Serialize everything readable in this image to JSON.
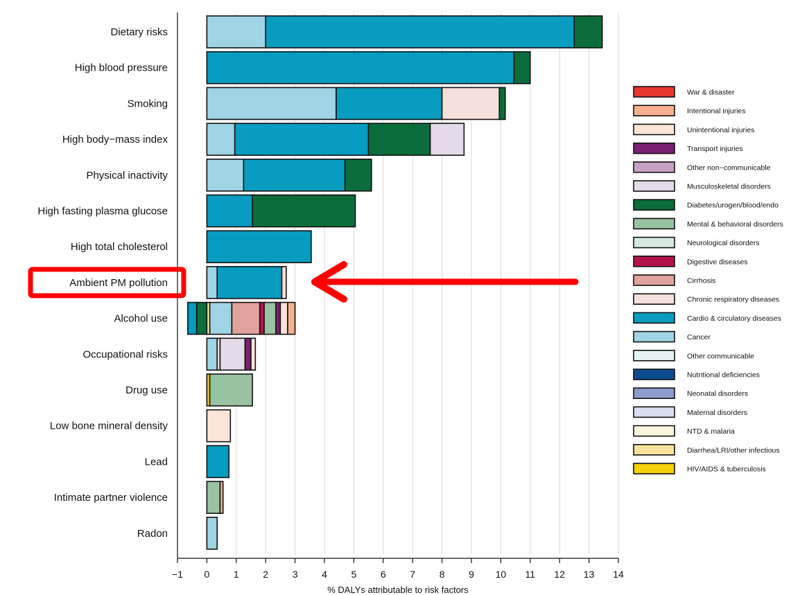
{
  "chart_data": {
    "type": "bar",
    "orientation": "horizontal",
    "stacked": true,
    "title": "",
    "xlabel": "% DALYs attributable to risk factors",
    "ylabel": "",
    "xlim": [
      -1,
      14
    ],
    "xticks": [
      -1,
      0,
      1,
      2,
      3,
      4,
      5,
      6,
      7,
      8,
      9,
      10,
      11,
      12,
      13,
      14
    ],
    "grid": "vertical",
    "legend_position": "right",
    "categories": [
      "Dietary risks",
      "High blood pressure",
      "Smoking",
      "High body−mass index",
      "Physical inactivity",
      "High fasting plasma glucose",
      "High total cholesterol",
      "Ambient PM pollution",
      "Alcohol use",
      "Occupational risks",
      "Drug use",
      "Low bone mineral density",
      "Lead",
      "Intimate partner violence",
      "Radon"
    ],
    "legend": [
      {
        "name": "War & disaster",
        "color": "#e8372e"
      },
      {
        "name": "Intentional injuries",
        "color": "#f7b08f"
      },
      {
        "name": "Unintentional injuries",
        "color": "#fde4d8"
      },
      {
        "name": "Transport injuries",
        "color": "#7b1f73"
      },
      {
        "name": "Other non−communicable",
        "color": "#c7a1c6"
      },
      {
        "name": "Musculoskeletal disorders",
        "color": "#e5dae9"
      },
      {
        "name": "Diabetes/urogen/blood/endo",
        "color": "#0b6d3b"
      },
      {
        "name": "Mental & behavioral disorders",
        "color": "#99c2a2"
      },
      {
        "name": "Neurological disorders",
        "color": "#d6e8dd"
      },
      {
        "name": "Digestive diseases",
        "color": "#b3134b"
      },
      {
        "name": "Cirrhosis",
        "color": "#e0a29c"
      },
      {
        "name": "Chronic respiratory diseases",
        "color": "#f5e0da"
      },
      {
        "name": "Cardio & circulatory diseases",
        "color": "#079cc0"
      },
      {
        "name": "Cancer",
        "color": "#9fd4e4"
      },
      {
        "name": "Other communicable",
        "color": "#e4f2f4"
      },
      {
        "name": "Nutritional deficiencies",
        "color": "#0b4b8c"
      },
      {
        "name": "Neonatal disorders",
        "color": "#8c9dcc"
      },
      {
        "name": "Maternal disorders",
        "color": "#d8ddef"
      },
      {
        "name": "NTD & malaria",
        "color": "#fdf6dd"
      },
      {
        "name": "Diarrhea/LRI/other infectious",
        "color": "#fbe29c"
      },
      {
        "name": "HIV/AIDS & tuberculosis",
        "color": "#f5d10c"
      }
    ],
    "bars": [
      {
        "category": "Dietary risks",
        "segments": [
          {
            "cause": "Cancer",
            "value": 2.0
          },
          {
            "cause": "Cardio & circulatory diseases",
            "value": 10.5
          },
          {
            "cause": "Diabetes/urogen/blood/endo",
            "value": 0.95
          }
        ]
      },
      {
        "category": "High blood pressure",
        "segments": [
          {
            "cause": "Cardio & circulatory diseases",
            "value": 10.45
          },
          {
            "cause": "Diabetes/urogen/blood/endo",
            "value": 0.55
          }
        ]
      },
      {
        "category": "Smoking",
        "segments": [
          {
            "cause": "Cancer",
            "value": 4.4
          },
          {
            "cause": "Cardio & circulatory diseases",
            "value": 3.6
          },
          {
            "cause": "Chronic respiratory diseases",
            "value": 1.95
          },
          {
            "cause": "Diabetes/urogen/blood/endo",
            "value": 0.2
          }
        ]
      },
      {
        "category": "High body−mass index",
        "segments": [
          {
            "cause": "Cancer",
            "value": 0.95
          },
          {
            "cause": "Cardio & circulatory diseases",
            "value": 4.55
          },
          {
            "cause": "Diabetes/urogen/blood/endo",
            "value": 2.1
          },
          {
            "cause": "Musculoskeletal disorders",
            "value": 1.15
          }
        ]
      },
      {
        "category": "Physical inactivity",
        "segments": [
          {
            "cause": "Cancer",
            "value": 1.25
          },
          {
            "cause": "Cardio & circulatory diseases",
            "value": 3.45
          },
          {
            "cause": "Diabetes/urogen/blood/endo",
            "value": 0.9
          }
        ]
      },
      {
        "category": "High fasting plasma glucose",
        "segments": [
          {
            "cause": "Cardio & circulatory diseases",
            "value": 1.55
          },
          {
            "cause": "Diabetes/urogen/blood/endo",
            "value": 3.5
          }
        ]
      },
      {
        "category": "High total cholesterol",
        "segments": [
          {
            "cause": "Cardio & circulatory diseases",
            "value": 3.55
          }
        ]
      },
      {
        "category": "Ambient PM pollution",
        "segments": [
          {
            "cause": "Cancer",
            "value": 0.35
          },
          {
            "cause": "Cardio & circulatory diseases",
            "value": 2.2
          },
          {
            "cause": "Chronic respiratory diseases",
            "value": 0.15
          }
        ]
      },
      {
        "category": "Alcohol use",
        "negative_segments": [
          {
            "cause": "Diabetes/urogen/blood/endo",
            "value": -0.35
          },
          {
            "cause": "Cardio & circulatory diseases",
            "value": -0.3
          }
        ],
        "segments": [
          {
            "cause": "Diarrhea/LRI/other infectious",
            "value": 0.1
          },
          {
            "cause": "Cancer",
            "value": 0.75
          },
          {
            "cause": "Cirrhosis",
            "value": 0.95
          },
          {
            "cause": "Digestive diseases",
            "value": 0.15
          },
          {
            "cause": "Mental & behavioral disorders",
            "value": 0.4
          },
          {
            "cause": "Transport injuries",
            "value": 0.15
          },
          {
            "cause": "Unintentional injuries",
            "value": 0.25
          },
          {
            "cause": "Intentional injuries",
            "value": 0.25
          }
        ]
      },
      {
        "category": "Occupational risks",
        "segments": [
          {
            "cause": "Cancer",
            "value": 0.35
          },
          {
            "cause": "Chronic respiratory diseases",
            "value": 0.1
          },
          {
            "cause": "Musculoskeletal disorders",
            "value": 0.85
          },
          {
            "cause": "Transport injuries",
            "value": 0.2
          },
          {
            "cause": "Unintentional injuries",
            "value": 0.15
          }
        ]
      },
      {
        "category": "Drug use",
        "segments": [
          {
            "cause": "HIV/AIDS & tuberculosis",
            "value": 0.1
          },
          {
            "cause": "Mental & behavioral disorders",
            "value": 1.45
          }
        ]
      },
      {
        "category": "Low bone mineral density",
        "segments": [
          {
            "cause": "Unintentional injuries",
            "value": 0.8
          }
        ]
      },
      {
        "category": "Lead",
        "segments": [
          {
            "cause": "Cardio & circulatory diseases",
            "value": 0.75
          }
        ]
      },
      {
        "category": "Intimate partner violence",
        "segments": [
          {
            "cause": "Mental & behavioral disorders",
            "value": 0.45
          },
          {
            "cause": "Intentional injuries",
            "value": 0.1
          }
        ]
      },
      {
        "category": "Radon",
        "segments": [
          {
            "cause": "Cancer",
            "value": 0.35
          }
        ]
      }
    ]
  },
  "annotation": {
    "highlight_box_color": "#ff0000",
    "arrow_color": "#ff0000",
    "highlighted_category": "Ambient PM pollution"
  }
}
